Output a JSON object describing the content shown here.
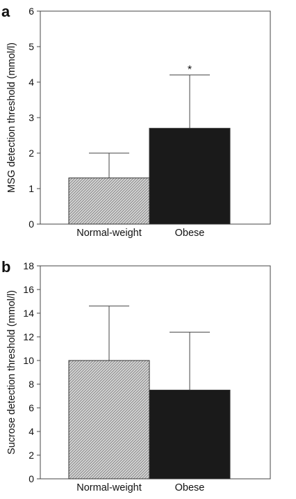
{
  "chart_data": [
    {
      "type": "bar",
      "panel": "a",
      "categories": [
        "Normal-weight",
        "Obese"
      ],
      "values": [
        1.3,
        2.7
      ],
      "error_upper": [
        2.0,
        4.2
      ],
      "ylabel": "MSG detection threshold (mmol/l)",
      "xlabel": "",
      "ylim": [
        0,
        6
      ],
      "yticks": [
        "0",
        "1",
        "2",
        "3",
        "4",
        "5",
        "6"
      ],
      "annotation": "*",
      "fills": [
        "hatched-gray",
        "#1a1a1a"
      ],
      "grid": false
    },
    {
      "type": "bar",
      "panel": "b",
      "categories": [
        "Normal-weight",
        "Obese"
      ],
      "values": [
        10.0,
        7.5
      ],
      "error_upper": [
        14.6,
        12.4
      ],
      "ylabel": "Sucrose detection threshold (mmol/l)",
      "xlabel": "",
      "ylim": [
        0,
        18
      ],
      "yticks": [
        "0",
        "2",
        "4",
        "6",
        "8",
        "10",
        "12",
        "14",
        "16",
        "18"
      ],
      "fills": [
        "hatched-gray",
        "#1a1a1a"
      ],
      "grid": false
    }
  ]
}
